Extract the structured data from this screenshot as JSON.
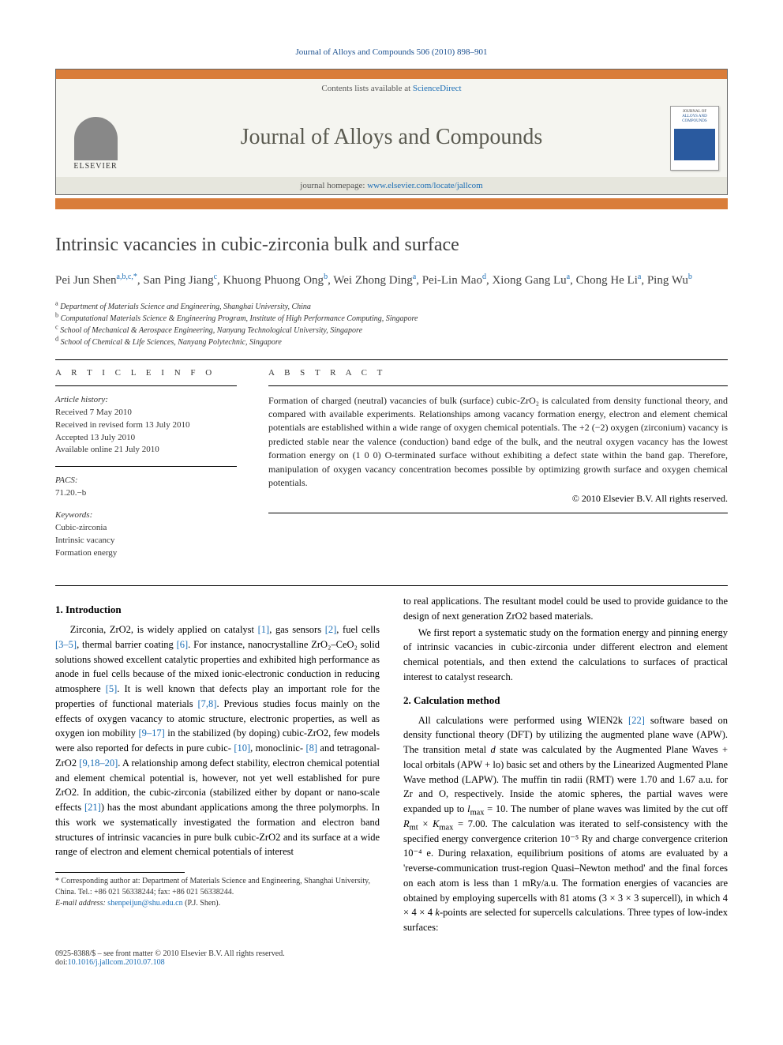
{
  "header": {
    "citation": "Journal of Alloys and Compounds 506 (2010) 898–901",
    "contents_line_pre": "Contents lists available at ",
    "contents_link": "ScienceDirect",
    "journal_title": "Journal of Alloys and Compounds",
    "homepage_pre": "journal homepage: ",
    "homepage_link": "www.elsevier.com/locate/jallcom",
    "publisher": "ELSEVIER",
    "cover_top": "JOURNAL OF",
    "cover_title": "ALLOYS AND COMPOUNDS"
  },
  "article": {
    "title": "Intrinsic vacancies in cubic-zirconia bulk and surface",
    "authors_html": "Pei Jun Shen<sup>a,b,c,*</sup>, San Ping Jiang<sup>c</sup>, Khuong Phuong Ong<sup>b</sup>, Wei Zhong Ding<sup>a</sup>, Pei-Lin Mao<sup>d</sup>, Xiong Gang Lu<sup>a</sup>, Chong He Li<sup>a</sup>, Ping Wu<sup>b</sup>",
    "affiliations": [
      "a Department of Materials Science and Engineering, Shanghai University, China",
      "b Computational Materials Science & Engineering Program, Institute of High Performance Computing, Singapore",
      "c School of Mechanical & Aerospace Engineering, Nanyang Technological University, Singapore",
      "d School of Chemical & Life Sciences, Nanyang Polytechnic, Singapore"
    ]
  },
  "info": {
    "label_left": "A R T I C L E   I N F O",
    "label_right": "A B S T R A C T",
    "history_label": "Article history:",
    "history": [
      "Received 7 May 2010",
      "Received in revised form 13 July 2010",
      "Accepted 13 July 2010",
      "Available online 21 July 2010"
    ],
    "pacs_label": "PACS:",
    "pacs": "71.20.−b",
    "keywords_label": "Keywords:",
    "keywords": [
      "Cubic-zirconia",
      "Intrinsic vacancy",
      "Formation energy"
    ],
    "abstract": "Formation of charged (neutral) vacancies of bulk (surface) cubic-ZrO₂ is calculated from density functional theory, and compared with available experiments. Relationships among vacancy formation energy, electron and element chemical potentials are established within a wide range of oxygen chemical potentials. The +2 (−2) oxygen (zirconium) vacancy is predicted stable near the valence (conduction) band edge of the bulk, and the neutral oxygen vacancy has the lowest formation energy on (1 0 0) O-terminated surface without exhibiting a defect state within the band gap. Therefore, manipulation of oxygen vacancy concentration becomes possible by optimizing growth surface and oxygen chemical potentials.",
    "copyright": "© 2010 Elsevier B.V. All rights reserved."
  },
  "sections": {
    "s1_title": "1.  Introduction",
    "s1_p1": "Zirconia, ZrO2, is widely applied on catalyst [1], gas sensors [2], fuel cells [3–5], thermal barrier coating [6]. For instance, nanocrystalline ZrO₂–CeO₂ solid solutions showed excellent catalytic properties and exhibited high performance as anode in fuel cells because of the mixed ionic-electronic conduction in reducing atmosphere [5]. It is well known that defects play an important role for the properties of functional materials [7,8]. Previous studies focus mainly on the effects of oxygen vacancy to atomic structure, electronic properties, as well as oxygen ion mobility [9–17] in the stabilized (by doping) cubic-ZrO2, few models were also reported for defects in pure cubic- [10], monoclinic- [8] and tetragonal-ZrO2 [9,18–20]. A relationship among defect stability, electron chemical potential and element chemical potential is, however, not yet well established for pure ZrO2. In addition, the cubic-zirconia (stabilized either by dopant or nano-scale effects [21]) has the most abundant applications among the three polymorphs. In this work we systematically investigated the formation and electron band structures of intrinsic vacancies in pure bulk cubic-ZrO2 and its surface at a wide range of electron and element chemical potentials of interest",
    "s1_p2": "to real applications. The resultant model could be used to provide guidance to the design of next generation ZrO2 based materials.",
    "s1_p3": "We first report a systematic study on the formation energy and pinning energy of intrinsic vacancies in cubic-zirconia under different electron and element chemical potentials, and then extend the calculations to surfaces of practical interest to catalyst research.",
    "s2_title": "2.  Calculation method",
    "s2_p1": "All calculations were performed using WIEN2k [22] software based on density functional theory (DFT) by utilizing the augmented plane wave (APW). The transition metal d state was calculated by the Augmented Plane Waves + local orbitals (APW + lo) basic set and others by the Linearized Augmented Plane Wave method (LAPW). The muffin tin radii (RMT) were 1.70 and 1.67 a.u. for Zr and O, respectively. Inside the atomic spheres, the partial waves were expanded up to lmax = 10. The number of plane waves was limited by the cut off Rmt × Kmax = 7.00. The calculation was iterated to self-consistency with the specified energy convergence criterion 10⁻⁵ Ry and charge convergence criterion 10⁻⁴ e. During relaxation, equilibrium positions of atoms are evaluated by a 'reverse-communication trust-region Quasi–Newton method' and the final forces on each atom is less than 1 mRy/a.u. The formation energies of vacancies are obtained by employing supercells with 81 atoms (3 × 3 × 3 supercell), in which 4 × 4 × 4 k-points are selected for supercells calculations. Three types of low-index surfaces:"
  },
  "footnote": {
    "corr": "* Corresponding author at: Department of Materials Science and Engineering, Shanghai University, China. Tel.: +86 021 56338244; fax: +86 021 56338244.",
    "email_label": "E-mail address:",
    "email": "shenpeijun@shu.edu.cn",
    "email_suffix": "(P.J. Shen)."
  },
  "footer": {
    "left1": "0925-8388/$ – see front matter © 2010 Elsevier B.V. All rights reserved.",
    "left2_pre": "doi:",
    "left2_link": "10.1016/j.jallcom.2010.07.108"
  },
  "colors": {
    "accent": "#d97d3a",
    "link": "#1a6db5"
  }
}
